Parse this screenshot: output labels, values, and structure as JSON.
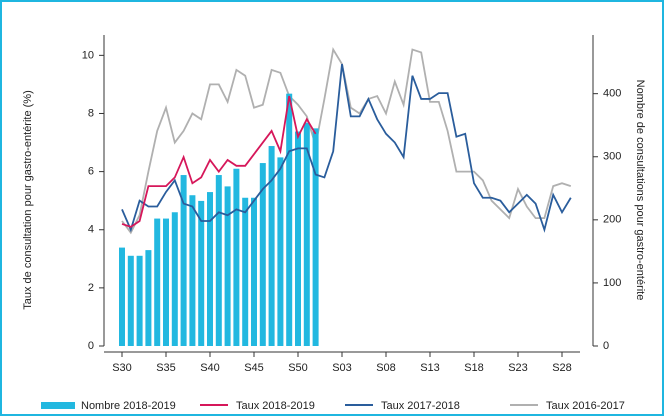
{
  "chart_data": {
    "type": "combo",
    "ylabel": "Taux de consultation pour gastro-entérite (%)",
    "y2label": "Nombre de consultations pour gastro-entérite",
    "categories": [
      "S30",
      null,
      null,
      null,
      null,
      "S35",
      null,
      null,
      null,
      null,
      "S40",
      null,
      null,
      null,
      null,
      "S45",
      null,
      null,
      null,
      null,
      "S50",
      null,
      null,
      null,
      null,
      "S03",
      null,
      null,
      null,
      null,
      "S08",
      null,
      null,
      null,
      null,
      "S13",
      null,
      null,
      null,
      null,
      "S18",
      null,
      null,
      null,
      null,
      "S23",
      null,
      null,
      null,
      null,
      "S28",
      null
    ],
    "ylim": [
      0,
      10.7
    ],
    "yticks": [
      0,
      2,
      4,
      6,
      8,
      10
    ],
    "y2lim": [
      0,
      493
    ],
    "y2ticks": [
      0,
      100,
      200,
      300,
      400
    ],
    "series": [
      {
        "name": "Nombre 2018-2019",
        "type": "bar",
        "axis": "y2",
        "color": "#22b8e0",
        "values": [
          156,
          143,
          143,
          152,
          202,
          202,
          212,
          271,
          239,
          230,
          244,
          271,
          253,
          281,
          235,
          235,
          290,
          317,
          299,
          400,
          340,
          354,
          345,
          null,
          null,
          null,
          null,
          null,
          null,
          null,
          null,
          null,
          null,
          null,
          null,
          null,
          null,
          null,
          null,
          null,
          null,
          null,
          null,
          null,
          null,
          null,
          null,
          null,
          null,
          null,
          null,
          null
        ]
      },
      {
        "name": "Taux 2018-2019",
        "type": "line",
        "color": "#d6175a",
        "values": [
          4.2,
          4.1,
          4.3,
          5.5,
          5.5,
          5.5,
          5.8,
          6.5,
          5.6,
          5.8,
          6.4,
          6.0,
          6.4,
          6.2,
          6.2,
          6.6,
          7.0,
          7.4,
          6.7,
          8.6,
          7.2,
          7.8,
          7.3,
          null,
          null,
          null,
          null,
          null,
          null,
          null,
          null,
          null,
          null,
          null,
          null,
          null,
          null,
          null,
          null,
          null,
          null,
          null,
          null,
          null,
          null,
          null,
          null,
          null,
          null,
          null,
          null,
          null
        ]
      },
      {
        "name": "Taux 2017-2018",
        "type": "line",
        "color": "#2a5d9c",
        "values": [
          4.7,
          4.0,
          5.0,
          4.8,
          4.8,
          5.3,
          5.7,
          4.9,
          4.8,
          4.3,
          4.3,
          4.6,
          4.5,
          4.7,
          4.6,
          5.0,
          5.4,
          5.7,
          6.1,
          6.7,
          6.8,
          6.8,
          5.9,
          5.8,
          6.7,
          9.7,
          7.9,
          7.9,
          8.5,
          7.8,
          7.3,
          7.0,
          6.5,
          9.3,
          8.5,
          8.5,
          8.7,
          8.7,
          7.2,
          7.3,
          5.6,
          5.1,
          5.1,
          5.0,
          4.6,
          4.9,
          5.2,
          4.9,
          4.0,
          5.2,
          4.6,
          5.1
        ]
      },
      {
        "name": "Taux 2016-2017",
        "type": "line",
        "color": "#b0b0b0",
        "values": [
          4.3,
          3.9,
          4.5,
          6.0,
          7.4,
          8.2,
          7.0,
          7.4,
          8.0,
          7.8,
          9.0,
          9.0,
          8.4,
          9.5,
          9.3,
          8.2,
          8.3,
          9.5,
          9.4,
          8.6,
          8.3,
          7.9,
          6.9,
          8.5,
          10.2,
          9.7,
          8.2,
          8.0,
          8.5,
          8.6,
          8.0,
          9.1,
          8.3,
          10.2,
          10.1,
          8.4,
          8.4,
          7.4,
          6.0,
          6.0,
          6.0,
          5.7,
          5.0,
          4.7,
          4.4,
          5.4,
          4.8,
          4.4,
          4.4,
          5.5,
          5.6,
          5.5
        ]
      }
    ]
  }
}
